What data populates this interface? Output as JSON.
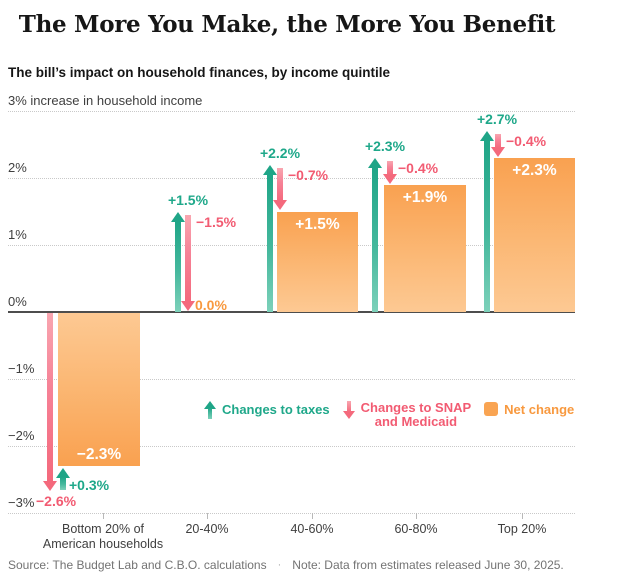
{
  "title": "The More You Make, the More You Benefit",
  "subtitle": "The bill’s impact on household finances, by income quintile",
  "source": "Source: The Budget Lab and C.B.O. calculations",
  "source_separator": "·",
  "note": "Note: Data from estimates released June 30, 2025.",
  "legend": {
    "taxes_label": "Changes to taxes",
    "snap_label_line1": "Changes to SNAP",
    "snap_label_line2": "and Medicaid",
    "net_label": "Net change"
  },
  "colors": {
    "tax_green": "#1fa88a",
    "snap_pink": "#f4697c",
    "net_orange": "#f9a150",
    "grid_gray": "#c9c9c9",
    "axis_gray": "#4d4d4d",
    "text_gray": "#3f3f3f",
    "source_gray": "#737373"
  },
  "chart_data": {
    "type": "bar",
    "title": "The More You Make, the More You Benefit",
    "subtitle": "The bill’s impact on household finances, by income quintile",
    "axis_top_label": "3% increase in household income",
    "categories": [
      "Bottom 20% of\nAmerican households",
      "20-40%",
      "40-60%",
      "60-80%",
      "Top 20%"
    ],
    "series": [
      {
        "name": "Changes to taxes",
        "values": [
          0.3,
          1.5,
          2.2,
          2.3,
          2.7
        ],
        "labels": [
          "+0.3%",
          "+1.5%",
          "+2.2%",
          "+2.3%",
          "+2.7%"
        ]
      },
      {
        "name": "Changes to SNAP and Medicaid",
        "values": [
          -2.6,
          -1.5,
          -0.7,
          -0.4,
          -0.4
        ],
        "labels": [
          "−2.6%",
          "−1.5%",
          "−0.7%",
          "−0.4%",
          "−0.4%"
        ]
      },
      {
        "name": "Net change",
        "values": [
          -2.3,
          0.0,
          1.5,
          1.9,
          2.3
        ],
        "labels": [
          "−2.3%",
          "0.0%",
          "+1.5%",
          "+1.9%",
          "+2.3%"
        ]
      }
    ],
    "ylim": [
      -3,
      3
    ],
    "y_gridline_values": [
      3,
      2,
      1,
      -1,
      -2,
      -3
    ],
    "y_tick_labels": [
      {
        "value": 2,
        "label": "2%"
      },
      {
        "value": 1,
        "label": "1%"
      },
      {
        "value": 0,
        "label": "0%"
      },
      {
        "value": -1,
        "label": "−1%"
      },
      {
        "value": -2,
        "label": "−2%"
      },
      {
        "value": -3,
        "label": "−3%"
      }
    ],
    "grid": true,
    "legend_position": "inside-middle-right"
  }
}
